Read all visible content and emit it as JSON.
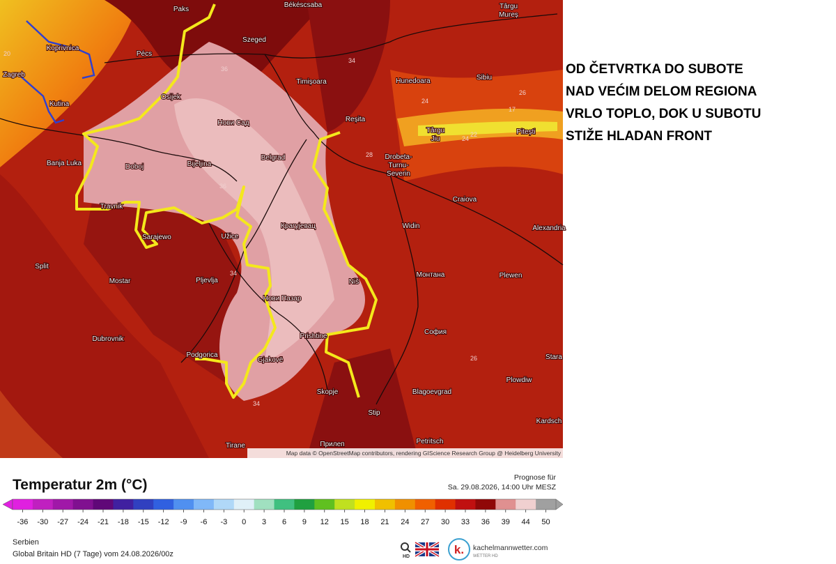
{
  "headline": [
    "OD ČETVRTKA DO SUBOTE",
    "NAD VEĆIM DELOM REGIONA",
    "VRLO TOPLO, DOK U SUBOTU",
    "STIŽE HLADAN FRONT"
  ],
  "map": {
    "cities": [
      [
        "Paks"
      ],
      [
        "Békéscsaba"
      ],
      [
        "Târgu",
        "Mureș"
      ],
      [
        "Koprivnica"
      ],
      [
        "Pécs"
      ],
      [
        "Szeged"
      ],
      [
        "Zagreb"
      ],
      [
        "Osijek"
      ],
      [
        "Timișoara"
      ],
      [
        "Hunedoara"
      ],
      [
        "Sibiu"
      ],
      [
        "Kutina"
      ],
      [
        "Нови Сад"
      ],
      [
        "Reșita"
      ],
      [
        "Târgu",
        "Jiu"
      ],
      [
        "Pitești"
      ],
      [
        "Banja Luka"
      ],
      [
        "Doboj"
      ],
      [
        "Bijeljina"
      ],
      [
        "Belgrad"
      ],
      [
        "Drobeta-",
        "Turnu-",
        "Severin"
      ],
      [
        "Craiova"
      ],
      [
        "Travnik"
      ],
      [
        "Крагујевац"
      ],
      [
        "Widin"
      ],
      [
        "Alexandria"
      ],
      [
        "Sarajewo"
      ],
      [
        "Užice"
      ],
      [
        "Split"
      ],
      [
        "Монтана"
      ],
      [
        "Plewen"
      ],
      [
        "Mostar"
      ],
      [
        "Pljevlja"
      ],
      [
        "Niš"
      ],
      [
        "Нови Пазар"
      ],
      [
        "София"
      ],
      [
        "Dubrovnik"
      ],
      [
        "Prishtine"
      ],
      [
        "Podgorica"
      ],
      [
        "Gjakovë"
      ],
      [
        "Stara"
      ],
      [
        "Plowdiw"
      ],
      [
        "Skopje"
      ],
      [
        "Blagoevgrad"
      ],
      [
        "Stip"
      ],
      [
        "Kardsch"
      ],
      [
        "Tirane"
      ],
      [
        "Petritsch"
      ],
      [
        "Прилеп"
      ]
    ],
    "contour_labels": [
      "20",
      "36",
      "34",
      "36",
      "34",
      "28",
      "24",
      "24",
      "22",
      "17",
      "26",
      "26",
      "34"
    ],
    "attribution": "Map data © OpenStreetMap contributors, rendering GIScience Research Group @ Heidelberg University"
  },
  "legend": {
    "title": "Temperatur 2m (°C)",
    "forecast_label": "Prognose für",
    "forecast_time": "Sa. 29.08.2026, 14:00 Uhr MESZ",
    "ticks": [
      -36,
      -30,
      -27,
      -24,
      -21,
      -18,
      -15,
      -12,
      -9,
      -6,
      -3,
      0,
      3,
      6,
      9,
      12,
      15,
      18,
      21,
      24,
      27,
      30,
      33,
      36,
      39,
      44,
      50
    ],
    "colors": [
      "#e020e0",
      "#c020c0",
      "#a018a8",
      "#801090",
      "#600878",
      "#4020a0",
      "#3040c0",
      "#3060e0",
      "#5090f0",
      "#80b8f8",
      "#b0d8f8",
      "#e0f0f8",
      "#a0e0c0",
      "#40c080",
      "#20a040",
      "#60c020",
      "#c0e020",
      "#f0f000",
      "#f0c000",
      "#f09000",
      "#f06000",
      "#e03000",
      "#c01010",
      "#900808",
      "#e09090",
      "#f0d0d0",
      "#a0a0a0"
    ]
  },
  "footer": {
    "region": "Serbien",
    "model": "Global Britain HD (7 Tage) vom 24.08.2026/00z",
    "hd": "HD",
    "logo_letter": "k.",
    "logo_site": "kachelmannwetter.com",
    "logo_sub": "WETTER HD"
  }
}
